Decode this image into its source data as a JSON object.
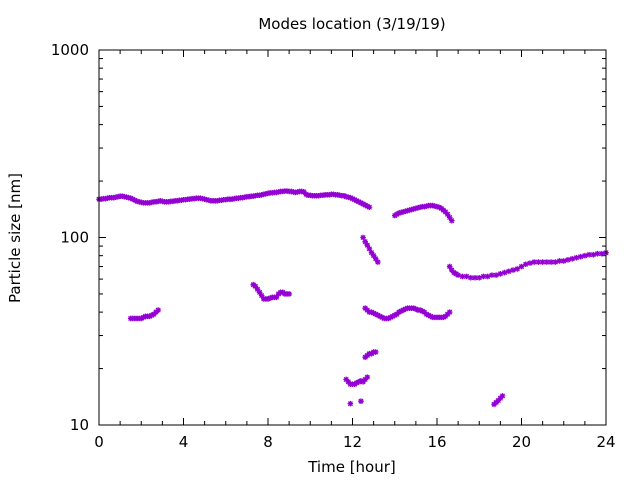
{
  "chart_data": {
    "type": "scatter",
    "title": "Modes location (3/19/19)",
    "xlabel": "Time [hour]",
    "ylabel": "Particle size [nm]",
    "xlim": [
      0,
      24
    ],
    "ylim": [
      10,
      1000
    ],
    "yscale": "log",
    "grid": false,
    "legend": "none",
    "marker": "star",
    "marker_color": "#9400d3",
    "xticks": [
      0,
      4,
      8,
      12,
      16,
      20,
      24
    ],
    "xtick_labels": [
      "0",
      "4",
      "8",
      "12",
      "16",
      "20",
      "24"
    ],
    "yticks": [
      10,
      100,
      1000
    ],
    "ytick_labels": [
      "10",
      "100",
      "1000"
    ],
    "series": [
      {
        "x": [
          0.0,
          0.1,
          0.2,
          0.3,
          0.4,
          0.5,
          0.6,
          0.7,
          0.8,
          0.9,
          1.0,
          1.1,
          1.2,
          1.3,
          1.4,
          1.5,
          1.6,
          1.7,
          1.8,
          1.9,
          2.0,
          2.1,
          2.2,
          2.3,
          2.4,
          2.5,
          2.6,
          2.7,
          2.8,
          2.9,
          3.0,
          3.1,
          3.2,
          3.3,
          3.4,
          3.5,
          3.6,
          3.7,
          3.8,
          3.9,
          4.0,
          4.1,
          4.2,
          4.3,
          4.4,
          4.5,
          4.6,
          4.7,
          4.8,
          4.9,
          5.0,
          5.1,
          5.2,
          5.3,
          5.4,
          5.5,
          5.6,
          5.7,
          5.8,
          5.9,
          6.0,
          6.1,
          6.2,
          6.3,
          6.4,
          6.5,
          6.6,
          6.7,
          6.8,
          6.9,
          7.0,
          7.1,
          7.2,
          7.3,
          7.4,
          7.5,
          7.6,
          7.7,
          7.8,
          7.9,
          8.0,
          8.1,
          8.2,
          8.3,
          8.4,
          8.5,
          8.6,
          8.7,
          8.8,
          8.9,
          9.0,
          9.1,
          9.2,
          9.3,
          9.4,
          9.5,
          9.6,
          9.7,
          9.8,
          9.9,
          10.0,
          10.1,
          10.2,
          10.3,
          10.4,
          10.5,
          10.6,
          10.7,
          10.8,
          10.9,
          11.0,
          11.1,
          11.2,
          11.3,
          11.4,
          11.5,
          11.6,
          11.7,
          11.8,
          11.9,
          12.0,
          12.1,
          12.2,
          12.3,
          12.4,
          12.5,
          12.6,
          12.7,
          12.8
        ],
        "y": [
          160,
          160,
          161,
          161,
          162,
          163,
          163,
          163,
          164,
          165,
          166,
          166,
          165,
          164,
          163,
          162,
          160,
          158,
          156,
          155,
          154,
          153,
          153,
          153,
          153,
          154,
          155,
          155,
          156,
          157,
          156,
          155,
          155,
          155,
          156,
          156,
          157,
          157,
          158,
          158,
          159,
          159,
          160,
          160,
          161,
          161,
          162,
          162,
          162,
          161,
          160,
          159,
          158,
          157,
          157,
          157,
          157,
          158,
          158,
          159,
          159,
          160,
          160,
          160,
          161,
          162,
          162,
          163,
          163,
          164,
          165,
          165,
          166,
          166,
          167,
          168,
          168,
          169,
          170,
          171,
          172,
          173,
          173,
          174,
          174,
          175,
          176,
          176,
          177,
          177,
          176,
          176,
          175,
          174,
          175,
          176,
          176,
          175,
          170,
          168,
          168,
          167,
          167,
          167,
          167,
          168,
          168,
          169,
          169,
          169,
          170,
          170,
          169,
          169,
          168,
          167,
          167,
          165,
          164,
          163,
          161,
          159,
          157,
          155,
          153,
          151,
          149,
          147,
          145
        ]
      },
      {
        "x": [
          12.5,
          12.6,
          12.7,
          12.8,
          12.9,
          13.0,
          13.1,
          13.2
        ],
        "y": [
          100,
          95,
          91,
          87,
          83,
          80,
          77,
          74
        ]
      },
      {
        "x": [
          14.0,
          14.1,
          14.2,
          14.3,
          14.4,
          14.5,
          14.6,
          14.7,
          14.8,
          14.9,
          15.0,
          15.1,
          15.2,
          15.3,
          15.4,
          15.5,
          15.6,
          15.7,
          15.8,
          15.9,
          16.0,
          16.1,
          16.2,
          16.3,
          16.4,
          16.5,
          16.6,
          16.7
        ],
        "y": [
          131,
          133,
          135,
          136,
          137,
          138,
          139,
          140,
          141,
          142,
          143,
          144,
          145,
          146,
          146,
          147,
          148,
          148,
          148,
          147,
          146,
          145,
          143,
          140,
          137,
          133,
          128,
          123
        ]
      },
      {
        "x": [
          16.6,
          16.7,
          16.8,
          16.9,
          17.0,
          17.2,
          17.4,
          17.6,
          17.8,
          18.0,
          18.2,
          18.4,
          18.6,
          18.8,
          19.0,
          19.2,
          19.4,
          19.6,
          19.8,
          20.0,
          20.2,
          20.4,
          20.6,
          20.8,
          21.0,
          21.2,
          21.4,
          21.6,
          21.8,
          22.0,
          22.2,
          22.4,
          22.6,
          22.8,
          23.0,
          23.2,
          23.4,
          23.6,
          23.8,
          24.0
        ],
        "y": [
          70,
          67,
          65,
          64,
          63,
          62,
          62,
          61,
          61,
          61,
          62,
          62,
          63,
          63,
          64,
          65,
          66,
          67,
          68,
          70,
          72,
          73,
          74,
          74,
          74,
          74,
          74,
          74,
          75,
          75,
          76,
          77,
          78,
          79,
          80,
          81,
          81,
          82,
          82,
          83
        ]
      },
      {
        "x": [
          1.5,
          1.6,
          1.7,
          1.8,
          1.9,
          2.0,
          2.1,
          2.2,
          2.3,
          2.4,
          2.5,
          2.6,
          2.7,
          2.8
        ],
        "y": [
          37,
          37,
          37,
          37,
          37,
          37,
          37.5,
          38,
          38,
          38,
          38.5,
          39,
          40,
          41
        ]
      },
      {
        "x": [
          7.3,
          7.4,
          7.5,
          7.6,
          7.7,
          7.8,
          7.9,
          8.0,
          8.1,
          8.2,
          8.3,
          8.4,
          8.5,
          8.6,
          8.7,
          8.8,
          8.9,
          9.0
        ],
        "y": [
          56,
          55,
          53,
          51,
          49,
          47,
          47,
          47,
          47.5,
          48,
          48,
          48,
          50,
          51,
          51,
          50,
          50,
          50
        ]
      },
      {
        "x": [
          12.6,
          12.7,
          12.8,
          12.9,
          13.0,
          13.1,
          13.2,
          13.3,
          13.4,
          13.5,
          13.6,
          13.7,
          13.8,
          13.9,
          14.0,
          14.1,
          14.2,
          14.3,
          14.4,
          14.5,
          14.6,
          14.7,
          14.8,
          14.9,
          15.0,
          15.1,
          15.2,
          15.3,
          15.4,
          15.5,
          15.6,
          15.7,
          15.8,
          15.9,
          16.0,
          16.1,
          16.2,
          16.3,
          16.4,
          16.5,
          16.6
        ],
        "y": [
          42,
          41,
          40,
          40,
          39.5,
          39,
          38.5,
          38,
          37.5,
          37,
          37,
          37,
          37.5,
          38,
          38.5,
          39,
          40,
          40.5,
          41,
          41.5,
          42,
          42,
          42,
          42,
          41.5,
          41,
          41,
          40.5,
          40,
          39,
          38.5,
          38,
          37.5,
          37.5,
          37.5,
          37.5,
          37.5,
          37.5,
          38,
          39,
          40
        ]
      },
      {
        "x": [
          12.6,
          12.7,
          12.8,
          12.9,
          13.0,
          13.1
        ],
        "y": [
          23,
          23.5,
          24,
          24,
          24.5,
          24.5
        ]
      },
      {
        "x": [
          11.7,
          11.8,
          11.9,
          12.0,
          12.1,
          12.2,
          12.3,
          12.4,
          12.5,
          12.6,
          12.7
        ],
        "y": [
          17.5,
          17,
          16.5,
          16.5,
          16.5,
          16.8,
          17,
          17.2,
          17,
          17.5,
          18
        ]
      },
      {
        "x": [
          11.9,
          12.4
        ],
        "y": [
          13,
          13.4
        ]
      },
      {
        "x": [
          18.7,
          18.8,
          18.9,
          19.0,
          19.1
        ],
        "y": [
          12.9,
          13.2,
          13.5,
          13.9,
          14.3
        ]
      }
    ]
  }
}
